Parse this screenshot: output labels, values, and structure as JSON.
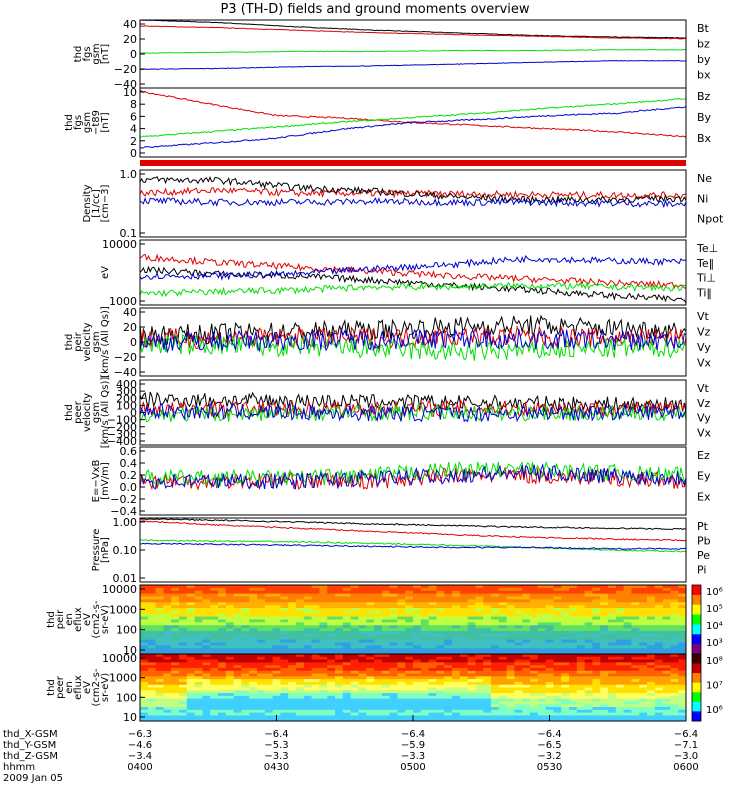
{
  "title": "P3 (TH-D) fields and ground moments overview",
  "colors": {
    "black": "#000000",
    "red": "#e00000",
    "green": "#00e000",
    "blue": "#0000d0",
    "frame": "#000000"
  },
  "chart_data": [
    {
      "type": "line",
      "panel": 1,
      "ylabel": [
        "thd",
        "fgs",
        "gsm",
        "[nT]"
      ],
      "yticks": [
        "40",
        "20",
        "0",
        "−20",
        "−40"
      ],
      "ylim": [
        -40,
        40
      ],
      "scale": "linear",
      "series": [
        {
          "name": "Bt",
          "color": "#000000",
          "values": [
            40,
            37,
            32,
            28,
            25,
            22,
            20,
            19
          ]
        },
        {
          "name": "bz",
          "color": "#e00000",
          "values": [
            33,
            31,
            28,
            25,
            23,
            21,
            19,
            18
          ]
        },
        {
          "name": "by",
          "color": "#00e000",
          "values": [
            1,
            2,
            3,
            3,
            4,
            4,
            5,
            5
          ]
        },
        {
          "name": "bx",
          "color": "#0000d0",
          "values": [
            -18,
            -17,
            -15,
            -14,
            -12,
            -10,
            -8,
            -8
          ]
        }
      ]
    },
    {
      "type": "line",
      "panel": 2,
      "ylabel": [
        "thd",
        "fgs",
        "gsm",
        "−t89",
        "[nT]"
      ],
      "yticks": [
        "10",
        "8",
        "6",
        "4",
        "2",
        "0"
      ],
      "ylim": [
        -1,
        10
      ],
      "scale": "linear",
      "series": [
        {
          "name": "Bz",
          "color": "#e00000",
          "values": [
            9.5,
            7.5,
            5.6,
            5.2,
            4.5,
            4.0,
            3.5,
            3.0,
            2.2
          ]
        },
        {
          "name": "By",
          "color": "#00e000",
          "values": [
            2.2,
            3.0,
            3.8,
            4.6,
            5.3,
            6.0,
            6.8,
            7.5,
            8.3
          ]
        },
        {
          "name": "Bx",
          "color": "#0000d0",
          "values": [
            0.5,
            1.2,
            2.0,
            3.5,
            4.5,
            5.0,
            5.6,
            6.0,
            7.0
          ]
        }
      ]
    },
    {
      "type": "line",
      "panel": 3,
      "ylabel": [
        "Density",
        "[1/cc]",
        "[cm−3]"
      ],
      "yticks": [
        "1.0",
        "0.1"
      ],
      "ylim": [
        0.1,
        1.0
      ],
      "scale": "log",
      "series": [
        {
          "name": "Ne",
          "color": "#e00000",
          "values": [
            0.45,
            0.5,
            0.45,
            0.45,
            0.44,
            0.43,
            0.42,
            0.42
          ]
        },
        {
          "name": "Ni",
          "color": "#000000",
          "values": [
            0.72,
            0.7,
            0.55,
            0.48,
            0.4,
            0.36,
            0.36,
            0.38
          ]
        },
        {
          "name": "Npot",
          "color": "#0000d0",
          "values": [
            0.35,
            0.33,
            0.33,
            0.34,
            0.33,
            0.33,
            0.32,
            0.31
          ]
        }
      ]
    },
    {
      "type": "line",
      "panel": 4,
      "ylabel": [
        "eV"
      ],
      "yticks": [
        "10000",
        "1000"
      ],
      "scale": "log",
      "series": [
        {
          "name": "Te⊥",
          "color": "#e00000",
          "values": [
            5500,
            4500,
            3800,
            3300,
            2800,
            2500,
            2200,
            2000
          ]
        },
        {
          "name": "Te‖",
          "color": "#000000",
          "values": [
            3500,
            3000,
            2800,
            2400,
            2000,
            1700,
            1400,
            1200
          ]
        },
        {
          "name": "Ti⊥",
          "color": "#0000d0",
          "values": [
            2800,
            2800,
            3000,
            3600,
            4200,
            5200,
            4800,
            4600
          ]
        },
        {
          "name": "Ti‖",
          "color": "#00e000",
          "values": [
            1500,
            1600,
            1700,
            1900,
            1900,
            2000,
            1900,
            1800
          ]
        }
      ]
    },
    {
      "type": "line",
      "panel": 5,
      "ylabel": [
        "thd",
        "peir",
        "velocity",
        "gsm",
        "[km/s (All Qs)]"
      ],
      "yticks": [
        "40",
        "20",
        "0",
        "−20",
        "−40"
      ],
      "ylim": [
        -40,
        40
      ],
      "scale": "linear",
      "series": [
        {
          "name": "Vt",
          "color": "#000000",
          "values": [
            8,
            10,
            12,
            14,
            18,
            20,
            16,
            14
          ]
        },
        {
          "name": "Vz",
          "color": "#e00000",
          "values": [
            4,
            4,
            5,
            5,
            6,
            6,
            5,
            5
          ]
        },
        {
          "name": "Vy",
          "color": "#00e000",
          "values": [
            -2,
            -4,
            -6,
            -8,
            -12,
            -10,
            -8,
            -6
          ]
        },
        {
          "name": "Vx",
          "color": "#0000d0",
          "values": [
            0,
            1,
            2,
            3,
            4,
            3,
            2,
            1
          ]
        }
      ]
    },
    {
      "type": "line",
      "panel": 6,
      "ylabel": [
        "thd",
        "peer",
        "velocity",
        "gsm",
        "[km/s (All Qs)]"
      ],
      "yticks": [
        "400",
        "300",
        "200",
        "100",
        "0",
        "−100",
        "−200",
        "−300",
        "−400"
      ],
      "ylim": [
        -400,
        400
      ],
      "scale": "linear",
      "series": [
        {
          "name": "Vt",
          "color": "#000000",
          "values": [
            160,
            150,
            140,
            130,
            120,
            110,
            100,
            90
          ]
        },
        {
          "name": "Vz",
          "color": "#e00000",
          "values": [
            40,
            40,
            45,
            45,
            50,
            50,
            45,
            45
          ]
        },
        {
          "name": "Vy",
          "color": "#00e000",
          "values": [
            -20,
            -20,
            -10,
            0,
            0,
            -10,
            -10,
            -10
          ]
        },
        {
          "name": "Vx",
          "color": "#0000d0",
          "values": [
            20,
            10,
            0,
            -10,
            -20,
            -10,
            0,
            10
          ]
        }
      ]
    },
    {
      "type": "line",
      "panel": 7,
      "ylabel": [
        "E=−VxB",
        "[mV/m]"
      ],
      "yticks": [
        "0.6",
        "0.4",
        "0.2",
        "0.0",
        "−0.2",
        "−0.4"
      ],
      "ylim": [
        -0.5,
        0.7
      ],
      "scale": "linear",
      "series": [
        {
          "name": "Ez",
          "color": "#e00000",
          "values": [
            0.1,
            0.1,
            0.1,
            0.1,
            0.2,
            0.2,
            0.15,
            0.1
          ]
        },
        {
          "name": "Ey",
          "color": "#00e000",
          "values": [
            0.15,
            0.15,
            0.15,
            0.2,
            0.3,
            0.3,
            0.25,
            0.2
          ]
        },
        {
          "name": "Ex",
          "color": "#0000d0",
          "values": [
            0.1,
            0.1,
            0.1,
            0.15,
            0.2,
            0.25,
            0.2,
            0.15
          ]
        }
      ]
    },
    {
      "type": "line",
      "panel": 8,
      "ylabel": [
        "Pressure",
        "[nPa]"
      ],
      "yticks": [
        "1.00",
        "0.10",
        "0.01"
      ],
      "ylim": [
        0.01,
        1.0
      ],
      "scale": "log",
      "series": [
        {
          "name": "Pt",
          "color": "#000000",
          "values": [
            0.95,
            0.85,
            0.75,
            0.65,
            0.58,
            0.52,
            0.48,
            0.45
          ]
        },
        {
          "name": "Pb",
          "color": "#e00000",
          "values": [
            0.8,
            0.6,
            0.48,
            0.38,
            0.3,
            0.25,
            0.22,
            0.2
          ]
        },
        {
          "name": "Pe",
          "color": "#00e000",
          "values": [
            0.2,
            0.19,
            0.18,
            0.16,
            0.14,
            0.12,
            0.1,
            0.09
          ]
        },
        {
          "name": "Pi",
          "color": "#0000d0",
          "values": [
            0.16,
            0.15,
            0.14,
            0.13,
            0.12,
            0.12,
            0.11,
            0.11
          ]
        }
      ]
    },
    {
      "type": "heatmap",
      "panel": 9,
      "ylabel": [
        "thd",
        "peir",
        "en",
        "eflux",
        "eV",
        "(cm2-s-",
        "sr-eV)"
      ],
      "yticks": [
        "10000",
        "1000",
        "100",
        "10"
      ],
      "colorbar_ticks": [
        "10⁶",
        "10⁵",
        "10⁴",
        "10³"
      ]
    },
    {
      "type": "heatmap",
      "panel": 10,
      "ylabel": [
        "thd",
        "peer",
        "en",
        "eflux",
        "eV",
        "(cm2-s-",
        "sr-eV)"
      ],
      "yticks": [
        "10000",
        "1000",
        "100",
        "10"
      ],
      "colorbar_ticks": [
        "10⁸",
        "10⁷",
        "10⁶"
      ]
    }
  ],
  "xaxis": {
    "rows": [
      {
        "label": "thd_X-GSM",
        "values": [
          "−6.3",
          "−6.4",
          "−6.4",
          "−6.4",
          "−6.4"
        ]
      },
      {
        "label": "thd_Y-GSM",
        "values": [
          "−4.6",
          "−5.3",
          "−5.9",
          "−6.5",
          "−7.1"
        ]
      },
      {
        "label": "thd_Z-GSM",
        "values": [
          "−3.4",
          "−3.3",
          "−3.3",
          "−3.2",
          "−3.0"
        ]
      },
      {
        "label": "hhmm",
        "values": [
          "0400",
          "0430",
          "0500",
          "0530",
          "0600"
        ]
      }
    ],
    "date": "2009 Jan 05"
  }
}
